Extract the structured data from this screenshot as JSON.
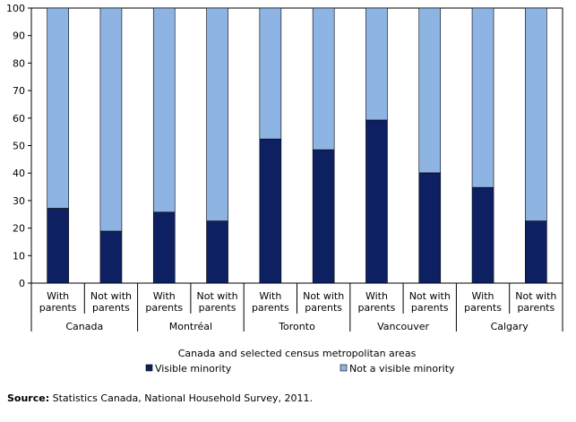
{
  "chart_data": {
    "type": "bar",
    "stacked": true,
    "percent": true,
    "ylim": [
      0,
      100
    ],
    "yticks": [
      0,
      10,
      20,
      30,
      40,
      50,
      60,
      70,
      80,
      90,
      100
    ],
    "grid": false,
    "categories": [
      {
        "line1": "With",
        "line2": "parents"
      },
      {
        "line1": "Not with",
        "line2": "parents"
      },
      {
        "line1": "With",
        "line2": "parents"
      },
      {
        "line1": "Not with",
        "line2": "parents"
      },
      {
        "line1": "With",
        "line2": "parents"
      },
      {
        "line1": "Not with",
        "line2": "parents"
      },
      {
        "line1": "With",
        "line2": "parents"
      },
      {
        "line1": "Not with",
        "line2": "parents"
      },
      {
        "line1": "With",
        "line2": "parents"
      },
      {
        "line1": "Not with",
        "line2": "parents"
      }
    ],
    "groups": [
      "Canada",
      "Montréal",
      "Toronto",
      "Vancouver",
      "Calgary"
    ],
    "xlabel": "Canada and selected census metropolitan areas",
    "series": [
      {
        "name": "Visible minority",
        "color": "#0d2162",
        "values": [
          27.2,
          18.9,
          25.8,
          22.6,
          52.4,
          48.5,
          59.3,
          40.1,
          34.8,
          22.6
        ]
      },
      {
        "name": "Not a visible minority",
        "color": "#8eb4e3",
        "values": [
          72.8,
          81.1,
          74.2,
          77.4,
          47.6,
          51.5,
          40.7,
          59.9,
          65.2,
          77.4
        ]
      }
    ],
    "legend_position": "bottom"
  },
  "source": {
    "label": "Source:",
    "text": " Statistics Canada, National Household Survey, 2011."
  }
}
